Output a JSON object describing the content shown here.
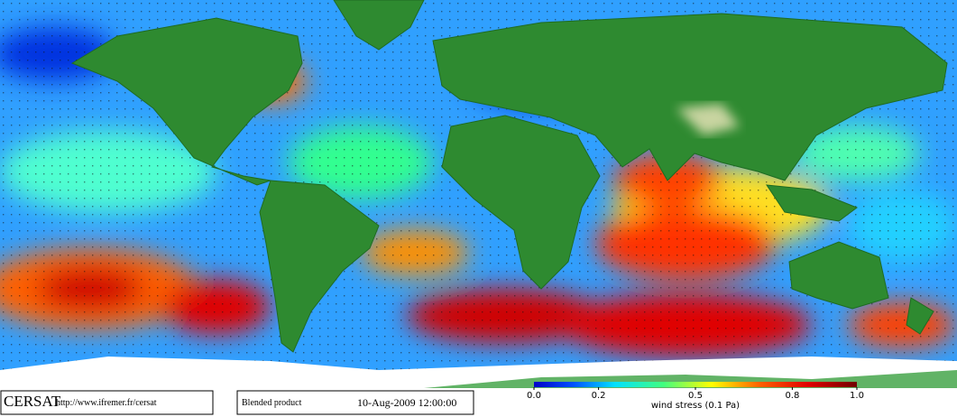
{
  "logo": "CERSAT",
  "url": "http://www.ifremer.fr/cersat",
  "product": "Blended product",
  "date": "10-Aug-2009 12:00:00",
  "colorbar": {
    "label": "wind stress (0.1 Pa)",
    "lim": [
      0,
      1
    ],
    "ticks": [
      {
        "value": 0,
        "label": "0.0"
      },
      0.2,
      0.5,
      0.8,
      {
        "value": 1,
        "label": "1.0"
      }
    ]
  }
}
